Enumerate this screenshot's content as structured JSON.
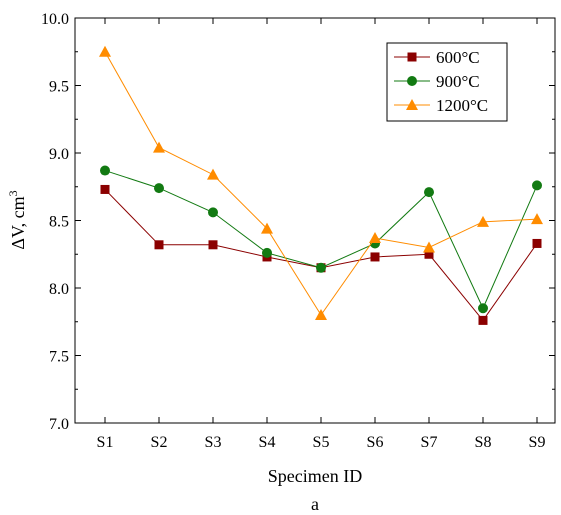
{
  "chart_data": {
    "type": "line",
    "categories": [
      "S1",
      "S2",
      "S3",
      "S4",
      "S5",
      "S6",
      "S7",
      "S8",
      "S9"
    ],
    "xlabel": "Specimen ID",
    "ylabel": "ΔV, cm",
    "ylabel_sup": "3",
    "ylim": [
      7.0,
      10.0
    ],
    "yticks": [
      "7.0",
      "7.5",
      "8.0",
      "8.5",
      "9.0",
      "9.5",
      "10.0"
    ],
    "caption": "a",
    "grid": false,
    "legend_position": "top-right",
    "series": [
      {
        "name": "600°C",
        "color": "#8b0000",
        "marker": "square",
        "values": [
          8.73,
          8.32,
          8.32,
          8.23,
          8.15,
          8.23,
          8.25,
          7.76,
          8.33
        ]
      },
      {
        "name": "900°C",
        "color": "#127a12",
        "marker": "circle",
        "values": [
          8.87,
          8.74,
          8.56,
          8.26,
          8.15,
          8.33,
          8.71,
          7.85,
          8.76
        ]
      },
      {
        "name": "1200°C",
        "color": "#ff8c00",
        "marker": "triangle",
        "values": [
          9.75,
          9.04,
          8.84,
          8.44,
          7.8,
          8.37,
          8.3,
          8.49,
          8.51
        ]
      }
    ]
  }
}
